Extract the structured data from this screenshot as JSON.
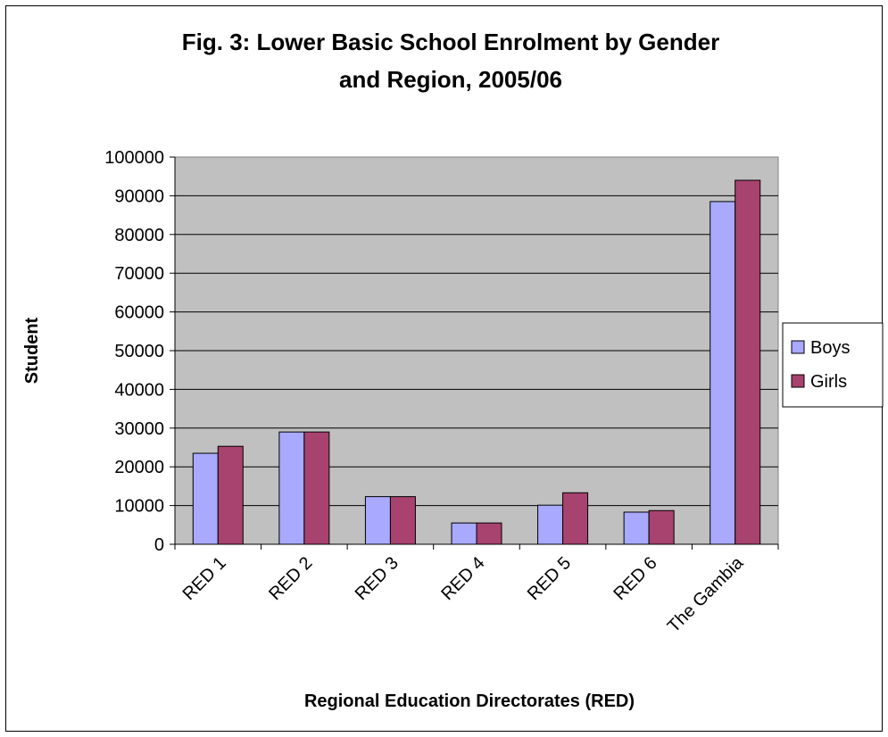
{
  "chart_data": {
    "type": "bar",
    "title_line1": "Fig. 3: Lower Basic School Enrolment by Gender",
    "title_line2": "and Region, 2005/06",
    "xlabel": "Regional Education Directorates (RED)",
    "ylabel": "Student",
    "categories": [
      "RED 1",
      "RED 2",
      "RED 3",
      "RED 4",
      "RED 5",
      "RED 6",
      "The Gambia"
    ],
    "series": [
      {
        "name": "Boys",
        "color": "#a9a9ff",
        "values": [
          23500,
          29000,
          12300,
          5500,
          10100,
          8300,
          88500
        ]
      },
      {
        "name": "Girls",
        "color": "#a8426f",
        "values": [
          25300,
          29000,
          12300,
          5500,
          13300,
          8700,
          94000
        ]
      }
    ],
    "ylim": [
      0,
      100000
    ],
    "yticks": [
      "0",
      "10000",
      "20000",
      "30000",
      "40000",
      "50000",
      "60000",
      "70000",
      "80000",
      "90000",
      "100000"
    ],
    "grid": true,
    "plot_background": "#c0c0c0",
    "legend_position": "right"
  }
}
